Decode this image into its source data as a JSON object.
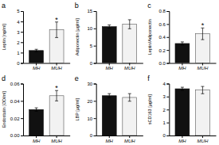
{
  "chart_data": [
    {
      "type": "bar",
      "title": "a",
      "ylabel": "Leptin [ng/ml]",
      "categories": [
        "MH",
        "MUH"
      ],
      "values": [
        1.2,
        3.2
      ],
      "errors": [
        0.12,
        0.75
      ],
      "colors": [
        "#111111",
        "#f2f2f2"
      ],
      "ylim": [
        0,
        5
      ],
      "yticks": [
        0,
        1,
        2,
        3,
        4,
        5
      ],
      "annotations": [
        {
          "text": "*",
          "x": "MUH"
        }
      ]
    },
    {
      "type": "bar",
      "title": "b",
      "ylabel": "Adiponectin [µg/ml]",
      "categories": [
        "MH",
        "MUH"
      ],
      "values": [
        10.5,
        11.2
      ],
      "errors": [
        0.5,
        1.3
      ],
      "colors": [
        "#111111",
        "#f2f2f2"
      ],
      "ylim": [
        0,
        15
      ],
      "yticks": [
        0,
        5,
        10,
        15
      ]
    },
    {
      "type": "bar",
      "title": "c",
      "ylabel": "Leptin/Adiponectin",
      "categories": [
        "MH",
        "MUH"
      ],
      "values": [
        0.3,
        0.45
      ],
      "errors": [
        0.025,
        0.09
      ],
      "colors": [
        "#111111",
        "#f2f2f2"
      ],
      "ylim": [
        0.0,
        0.8
      ],
      "yticks": [
        {
          "value": 0.0,
          "label": "0.0"
        },
        0.2,
        0.4,
        0.6,
        0.8
      ],
      "annotations": [
        {
          "text": "*",
          "x": "MUH"
        }
      ]
    },
    {
      "type": "bar",
      "title": "d",
      "ylabel": "Endostatin [OD/ml]",
      "categories": [
        "MH",
        "MUH"
      ],
      "values": [
        0.03,
        0.046
      ],
      "errors": [
        0.002,
        0.006
      ],
      "colors": [
        "#111111",
        "#f2f2f2"
      ],
      "ylim": [
        0.0,
        0.06
      ],
      "yticks": [
        {
          "value": 0.0,
          "label": "0.00"
        },
        0.02,
        0.04,
        0.06
      ],
      "annotations": [
        {
          "text": "*",
          "x": "MUH"
        }
      ]
    },
    {
      "type": "bar",
      "title": "e",
      "ylabel": "LBP [µg/ml]",
      "categories": [
        "MH",
        "MUH"
      ],
      "values": [
        23.0,
        22.0
      ],
      "errors": [
        1.2,
        2.2
      ],
      "colors": [
        "#111111",
        "#f2f2f2"
      ],
      "ylim": [
        0,
        30
      ],
      "yticks": [
        0,
        10,
        20,
        30
      ]
    },
    {
      "type": "bar",
      "title": "f",
      "ylabel": "sCD163 [µg/ml]",
      "categories": [
        "MH",
        "MUH"
      ],
      "values": [
        3.6,
        3.5
      ],
      "errors": [
        0.12,
        0.28
      ],
      "colors": [
        "#111111",
        "#f2f2f2"
      ],
      "ylim": [
        0,
        4
      ],
      "yticks": [
        0,
        1,
        2,
        3,
        4
      ]
    }
  ]
}
